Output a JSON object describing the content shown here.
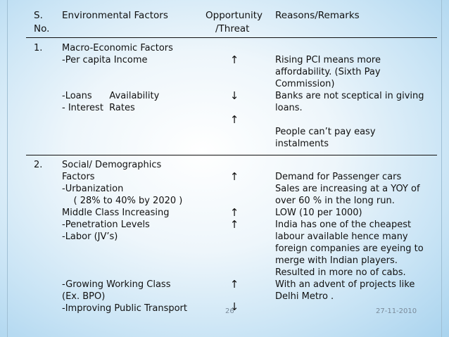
{
  "table": {
    "headers": {
      "sno": [
        "S.",
        "No."
      ],
      "factor": "Environmental Factors",
      "opp": [
        "Opportunity",
        "/Threat"
      ],
      "remarks": "Reasons/Remarks"
    },
    "rows": [
      {
        "sno": "1.",
        "factors": [
          "Macro-Economic Factors",
          "-Per capita Income"
        ],
        "factors2": [
          "-Loans      Availability",
          "- Interest  Rates"
        ],
        "remarks1": [
          "Rising PCI means more",
          "affordability. (Sixth Pay",
          "Commission)"
        ],
        "remarks2": [
          "Banks are not sceptical in giving",
          "loans."
        ],
        "remarks3": [
          "People can’t pay easy",
          "instalments"
        ]
      },
      {
        "sno": "2.",
        "factors": [
          "Social/ Demographics",
          "Factors",
          "-Urbanization",
          "    ( 28% to 40% by 2020 )",
          "Middle Class Increasing",
          "-Penetration Levels",
          "-Labor (JV’s)"
        ],
        "factors2": [
          "-Growing Working Class",
          "(Ex. BPO)",
          "-Improving Public Transport"
        ],
        "remarks1": [
          "Demand for Passenger cars",
          "Sales are increasing at a YOY of",
          "over 60 % in the long run.",
          "LOW (10 per 1000)",
          "India has one of the cheapest",
          "labour available hence many",
          "foreign companies are eyeing to",
          "merge with Indian players.",
          "Resulted in more no of cabs.",
          "With an advent of projects like",
          "Delhi Metro ."
        ]
      }
    ],
    "arrows": {
      "up": "↑",
      "down": "↓"
    }
  },
  "footer": {
    "page": "26",
    "date": "27-11-2010"
  }
}
